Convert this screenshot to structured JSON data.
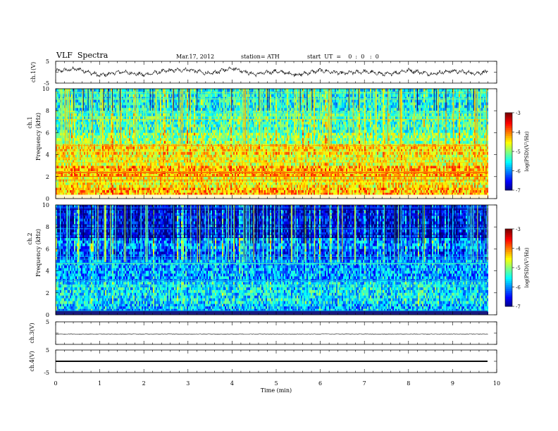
{
  "header": {
    "title": "VLF  Spectra",
    "date": "Mar.17, 2012",
    "station": "station= ATH",
    "start_ut": "start  UT  =    0  :  0   :  0"
  },
  "chart_data": [
    {
      "type": "line",
      "title": "",
      "xlabel": "",
      "ylabel": "ch.1(V)",
      "xlim": [
        0,
        10
      ],
      "ylim": [
        -5,
        5
      ],
      "yticks": [
        "5",
        "-5"
      ],
      "note": "noisy waveform, ~-2 to 2 V",
      "x": [
        0,
        0.5,
        1,
        1.5,
        2,
        2.5,
        3,
        3.5,
        4,
        4.5,
        5,
        5.5,
        6,
        6.5,
        7,
        7.5,
        8,
        8.5,
        9,
        9.5,
        9.8
      ],
      "y": [
        0.5,
        1.5,
        -1.5,
        0.2,
        -1.2,
        0.6,
        1.2,
        -0.8,
        2.0,
        -1.0,
        0.4,
        -1.2,
        0.8,
        -0.6,
        0.3,
        -1.0,
        0.9,
        -0.8,
        0.6,
        -0.5,
        0.2
      ]
    },
    {
      "type": "heatmap",
      "title": "",
      "xlabel": "",
      "ylabel_top": "ch.1",
      "ylabel": "Frequency  (kHz)",
      "xlim": [
        0,
        10
      ],
      "ylim": [
        0,
        10
      ],
      "yticks": [
        "0",
        "2",
        "4",
        "6",
        "8",
        "10"
      ],
      "colorbar": {
        "label": "log(PSD)(V²/Hz)",
        "range": [
          -7,
          -3
        ],
        "ticks": [
          "-3",
          "-4",
          "-5",
          "-6",
          "-7"
        ]
      },
      "bands_kHz_log_psd": [
        [
          0.0,
          0.3,
          -3.2
        ],
        [
          0.3,
          1.0,
          -4.2
        ],
        [
          1.0,
          2.0,
          -4.5
        ],
        [
          2.0,
          3.0,
          -4.2
        ],
        [
          3.0,
          4.0,
          -4.6
        ],
        [
          4.0,
          5.0,
          -4.4
        ],
        [
          5.0,
          6.0,
          -5.0
        ],
        [
          6.0,
          8.0,
          -5.3
        ],
        [
          8.0,
          10.0,
          -5.5
        ]
      ]
    },
    {
      "type": "heatmap",
      "title": "",
      "xlabel": "",
      "ylabel_top": "ch.2",
      "ylabel": "Frequency  (kHz)",
      "xlim": [
        0,
        10
      ],
      "ylim": [
        0,
        10
      ],
      "yticks": [
        "0",
        "2",
        "4",
        "6",
        "8",
        "10"
      ],
      "colorbar": {
        "label": "log(PSD)(V²/Hz)",
        "range": [
          -7,
          -3
        ],
        "ticks": [
          "-3",
          "-4",
          "-5",
          "-6",
          "-7"
        ]
      },
      "bands_kHz_log_psd": [
        [
          0.0,
          0.3,
          -6.8
        ],
        [
          0.3,
          1.0,
          -5.8
        ],
        [
          1.0,
          3.0,
          -5.6
        ],
        [
          3.0,
          5.0,
          -5.9
        ],
        [
          5.0,
          6.0,
          -6.3
        ],
        [
          6.0,
          7.0,
          -6.0
        ],
        [
          7.0,
          10.0,
          -6.6
        ]
      ]
    },
    {
      "type": "line",
      "title": "",
      "xlabel": "",
      "ylabel": "ch.3(V)",
      "xlim": [
        0,
        10
      ],
      "ylim": [
        -5,
        5
      ],
      "yticks": [
        "5"
      ],
      "x": [
        0,
        9.8
      ],
      "y": [
        0,
        0
      ]
    },
    {
      "type": "line",
      "title": "",
      "xlabel": "Time  (min)",
      "ylabel": "ch.4(V)",
      "xlim": [
        0,
        10
      ],
      "ylim": [
        -5,
        5
      ],
      "yticks": [
        "5",
        "-5"
      ],
      "xticks": [
        "0",
        "1",
        "2",
        "3",
        "4",
        "5",
        "6",
        "7",
        "8",
        "9",
        "10"
      ],
      "x": [
        0,
        9.8
      ],
      "y": [
        0,
        0
      ]
    }
  ]
}
